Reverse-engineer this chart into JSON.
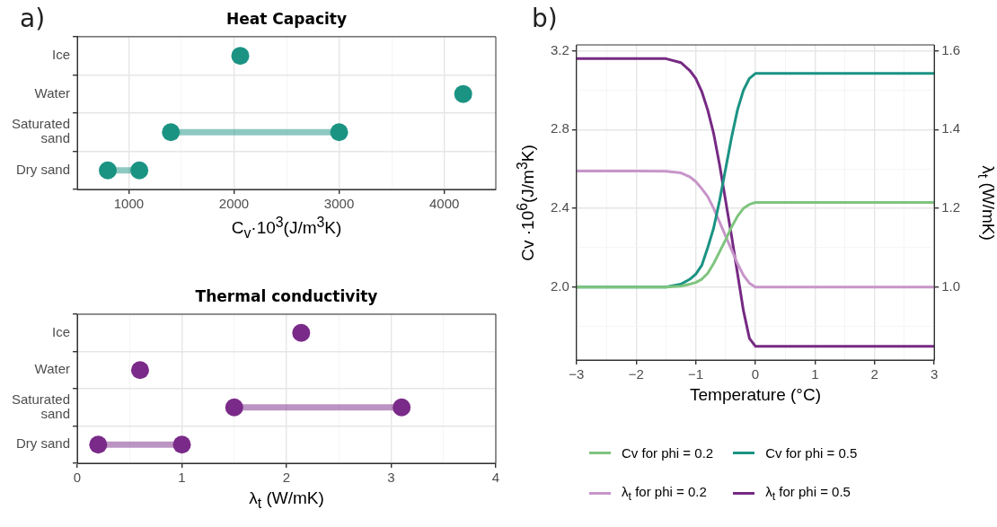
{
  "chart_data": [
    {
      "type": "scatter",
      "orientation": "horizontal",
      "title": "Heat Capacity",
      "annotations": [
        "a)"
      ],
      "xlabel": "C$_{v}$·10$^{3}$(J/m$^{3}$K)",
      "categories": [
        "Ice",
        "Water",
        "Saturated sand",
        "Dry sand"
      ],
      "xlim": [
        510,
        4490
      ],
      "xticks": [
        1000,
        {
          "value": 1500,
          "label": null
        },
        2000,
        {
          "value": 2500,
          "label": null
        },
        3000,
        {
          "value": 3500,
          "label": null
        },
        4000
      ],
      "grid": true,
      "marker": "circle",
      "series": [
        {
          "type": "scatter",
          "color": "#1b9383",
          "values": [
            2060,
            4180,
            1400,
            800
          ]
        },
        {
          "type": "scatter",
          "color": "#1b9383",
          "values": [
            null,
            null,
            3000,
            1100
          ]
        }
      ]
    },
    {
      "type": "scatter",
      "orientation": "horizontal",
      "title": "Thermal conductivity",
      "xlabel": "λ$_{t}$  (W/mK)",
      "categories": [
        "Ice",
        "Water",
        "Saturated sand",
        "Dry sand"
      ],
      "xlim": [
        0,
        4
      ],
      "xticks": [
        0,
        {
          "value": 0.5,
          "label": null
        },
        1,
        {
          "value": 1.5,
          "label": null
        },
        2,
        {
          "value": 2.5,
          "label": null
        },
        3,
        {
          "value": 3.5,
          "label": null
        },
        4
      ],
      "grid": true,
      "marker": "circle",
      "series": [
        {
          "type": "scatter",
          "color": "#7a2a88",
          "values": [
            2.14,
            0.6,
            1.5,
            0.2
          ]
        },
        {
          "type": "scatter",
          "color": "#7a2a88",
          "values": [
            null,
            null,
            3.1,
            1.0
          ]
        }
      ]
    },
    {
      "type": "line",
      "annotations": [
        "b)"
      ],
      "xlabel": "Temperature (°C)",
      "ylabel": "Cv ·10$^{6}$(J/m$^{3}$K)",
      "y2label": "λ$_{t}$  (W/mK)",
      "xlim": [
        -3,
        3
      ],
      "xticks": [
        {
          "value": -3,
          "label": "−3"
        },
        {
          "value": -2.5,
          "label": null
        },
        {
          "value": -2,
          "label": "−2"
        },
        {
          "value": -1.5,
          "label": null
        },
        {
          "value": -1,
          "label": "−1"
        },
        {
          "value": -0.5,
          "label": null
        },
        0,
        {
          "value": 0.5,
          "label": null
        },
        1,
        {
          "value": 1.5,
          "label": null
        },
        2,
        {
          "value": 2.5,
          "label": null
        },
        3
      ],
      "ylim": [
        1.63,
        3.23
      ],
      "yticks": [
        {
          "value": 1.8,
          "label": null
        },
        {
          "value": 2,
          "label": "2.0"
        },
        {
          "value": 2.2,
          "label": null
        },
        2.4,
        {
          "value": 2.6,
          "label": null
        },
        2.8,
        {
          "value": 3,
          "label": null
        },
        3.2
      ],
      "y2lim": [
        0.815,
        1.615
      ],
      "y2ticks": [
        {
          "value": 1,
          "label": "1.0"
        },
        1.2,
        1.4,
        1.6
      ],
      "grid": true,
      "legend": "bottom",
      "x": [
        -3,
        -2,
        -1.5,
        -1.25,
        -1.1,
        -1,
        -0.9,
        -0.8,
        -0.7,
        -0.6,
        -0.5,
        -0.4,
        -0.3,
        -0.2,
        -0.1,
        0,
        1,
        2,
        3
      ],
      "series": [
        {
          "name": "Cv for phi = 0.2",
          "color": "#7fc47f",
          "values": [
            2.0,
            2.0,
            2.0,
            2.005,
            2.015,
            2.024,
            2.04,
            2.07,
            2.12,
            2.18,
            2.24,
            2.305,
            2.36,
            2.4,
            2.42,
            2.43,
            2.43,
            2.43,
            2.43
          ]
        },
        {
          "name": "Cv for phi = 0.5",
          "color": "#1b9383",
          "values": [
            2.0,
            2.0,
            2.0,
            2.015,
            2.04,
            2.066,
            2.11,
            2.2,
            2.3,
            2.44,
            2.6,
            2.76,
            2.9,
            3.0,
            3.06,
            3.085,
            3.085,
            3.085,
            3.085
          ]
        },
        {
          "name": "λ$_{t}$ for phi = 0.2",
          "color": "#c795c9",
          "axis": "y2",
          "values": [
            1.295,
            1.295,
            1.294,
            1.29,
            1.28,
            1.268,
            1.25,
            1.23,
            1.2,
            1.165,
            1.13,
            1.095,
            1.06,
            1.03,
            1.01,
            1.0,
            1.0,
            1.0,
            1.0
          ]
        },
        {
          "name": "λ$_{t}$ for phi = 0.5",
          "color": "#762a83",
          "axis": "y2",
          "values": [
            1.58,
            1.58,
            1.58,
            1.57,
            1.55,
            1.53,
            1.497,
            1.45,
            1.39,
            1.31,
            1.22,
            1.13,
            1.035,
            0.94,
            0.87,
            0.85,
            0.85,
            0.85,
            0.85
          ]
        }
      ]
    }
  ]
}
